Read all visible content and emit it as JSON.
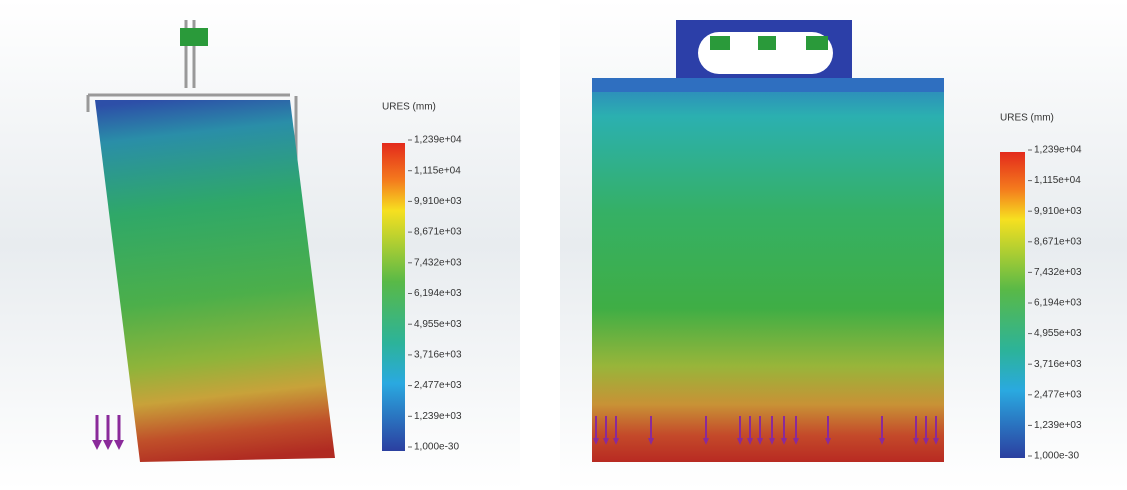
{
  "panels": [
    {
      "legend": {
        "title": "URES (mm)",
        "labels": [
          "1,239e+04",
          "1,115e+04",
          "9,910e+03",
          "8,671e+03",
          "7,432e+03",
          "6,194e+03",
          "4,955e+03",
          "3,716e+03",
          "2,477e+03",
          "1,239e+03",
          "1,000e-30"
        ]
      }
    },
    {
      "legend": {
        "title": "URES (mm)",
        "labels": [
          "1,239e+04",
          "1,115e+04",
          "9,910e+03",
          "8,671e+03",
          "7,432e+03",
          "6,194e+03",
          "4,955e+03",
          "3,716e+03",
          "2,477e+03",
          "1,239e+03",
          "1,000e-30"
        ]
      }
    }
  ]
}
